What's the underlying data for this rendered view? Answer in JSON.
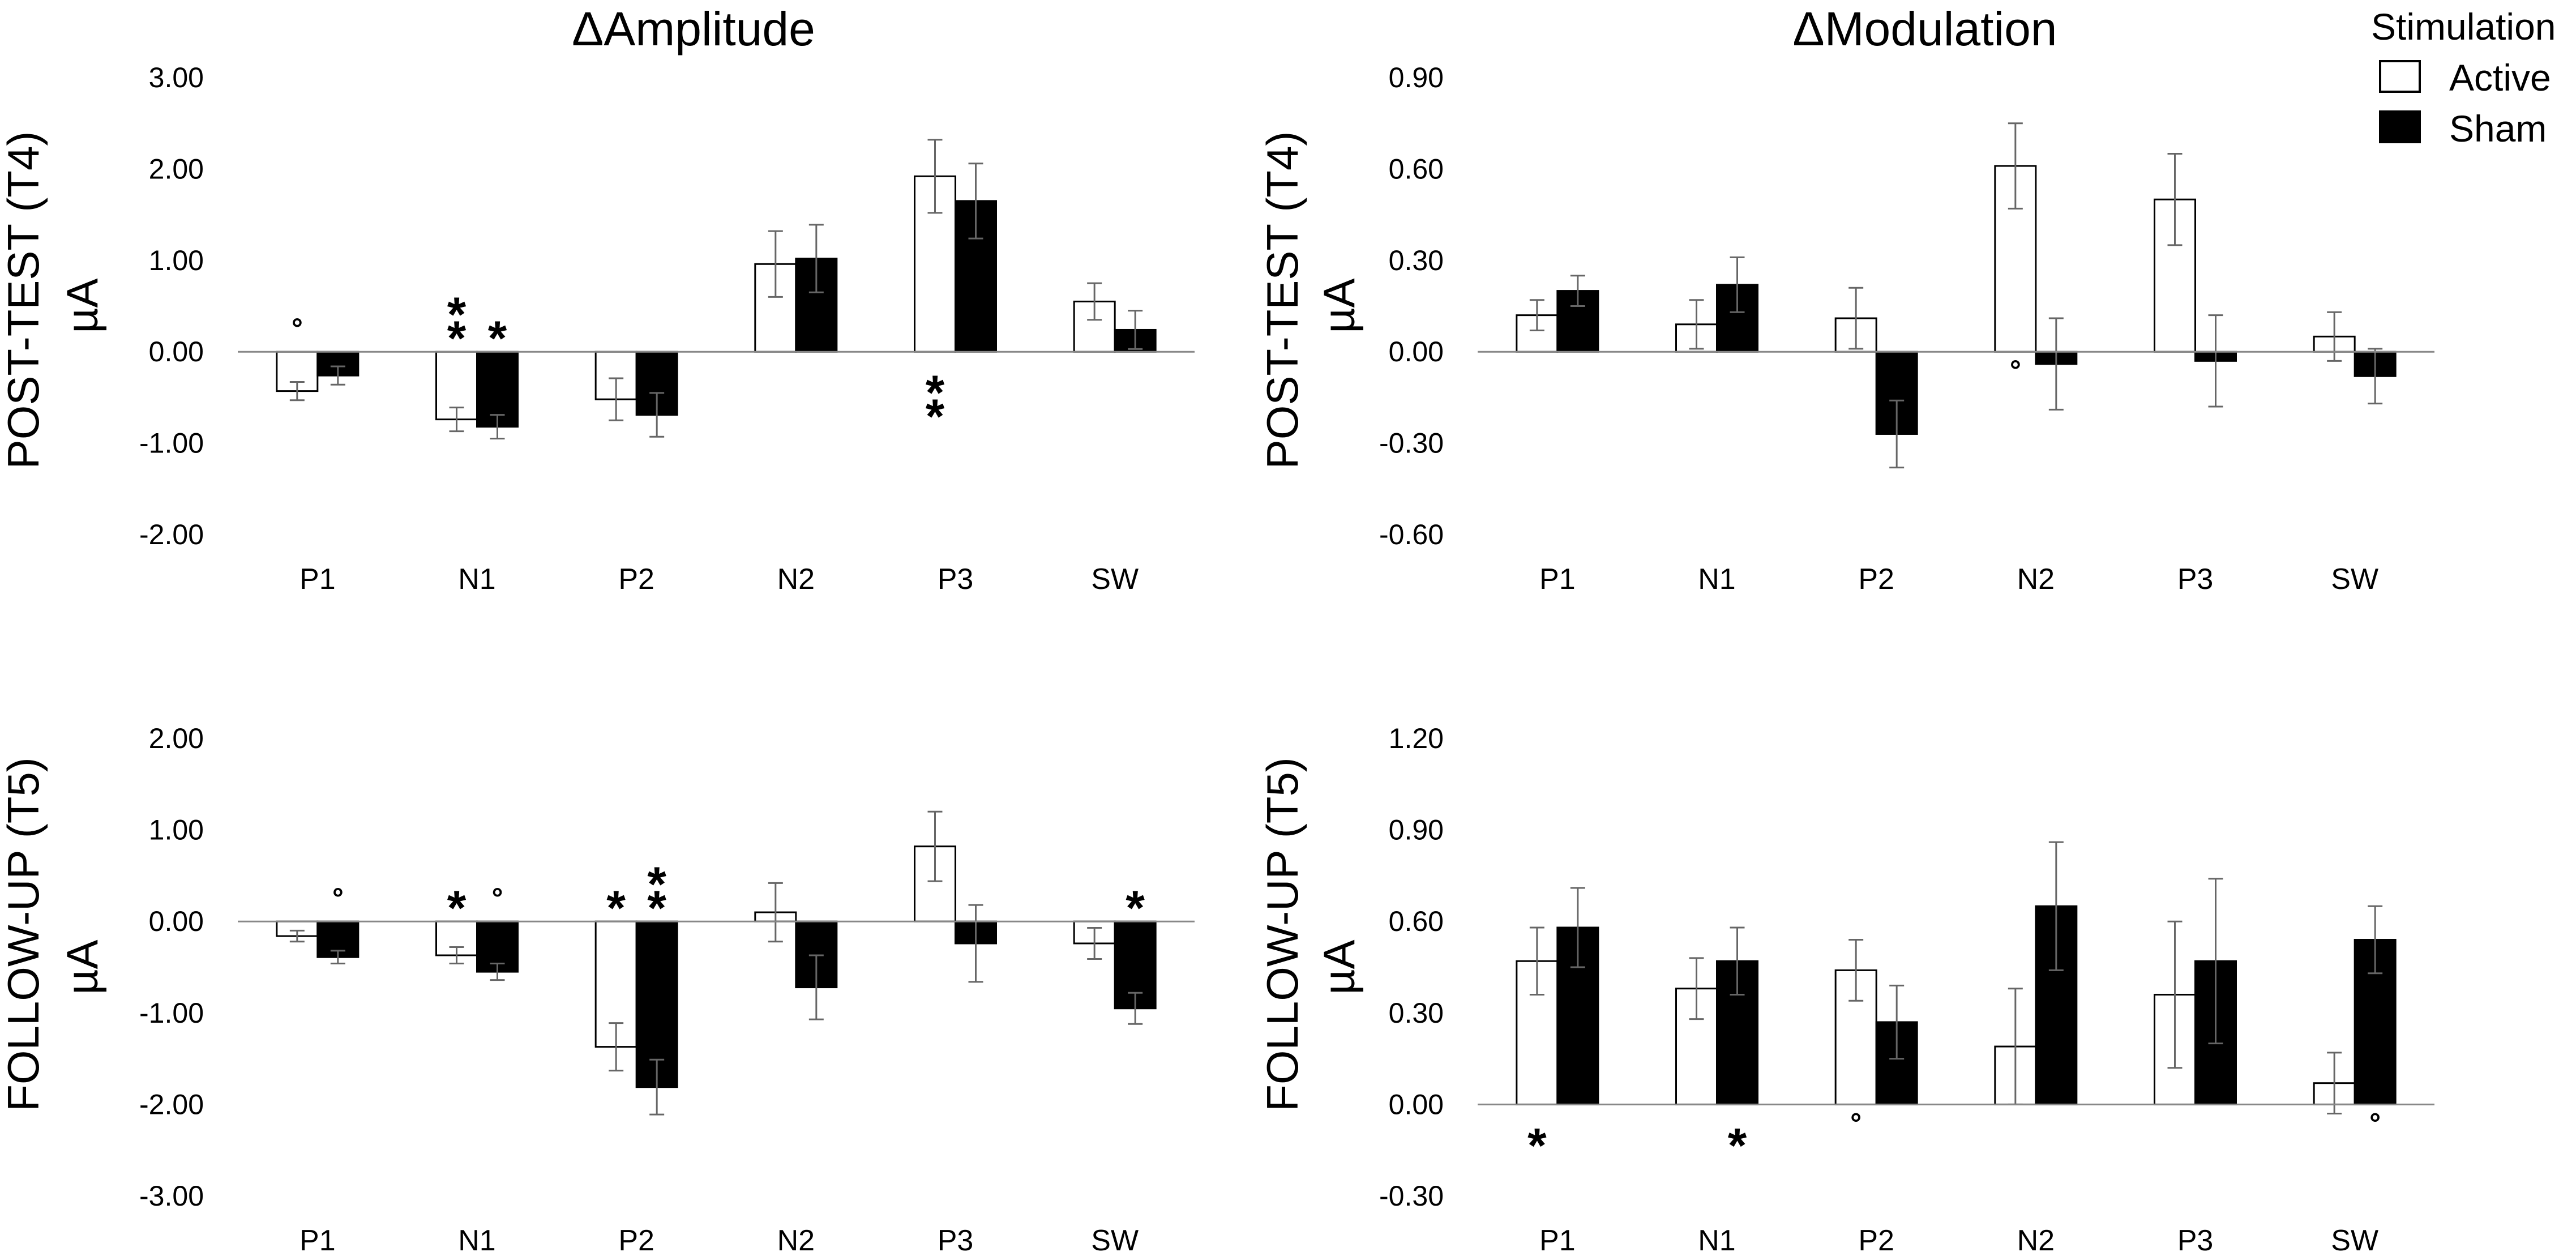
{
  "column_titles": [
    "ΔAmplitude",
    "ΔModulation"
  ],
  "row_labels": [
    "POST-TEST (T4)",
    "FOLLOW-UP (T5)"
  ],
  "legend": {
    "title": "Stimulation",
    "entries": [
      "Active",
      "Sham"
    ]
  },
  "colors": {
    "active_fill": "#ffffff",
    "sham_fill": "#000000",
    "bar_stroke": "#000000",
    "axis": "#888888",
    "error_bar": "#666666"
  },
  "chart_data": [
    {
      "type": "bar",
      "panel": "amplitude-t4",
      "title": "ΔAmplitude",
      "xlabel": "",
      "ylabel": "µA",
      "row_label": "POST-TEST (T4)",
      "categories": [
        "P1",
        "N1",
        "P2",
        "N2",
        "P3",
        "SW"
      ],
      "ylim": [
        -2.0,
        3.0
      ],
      "yticks": [
        "3.00",
        "2.00",
        "1.00",
        "0.00",
        "-1.00",
        "-2.00"
      ],
      "yticks_values": [
        3.0,
        2.0,
        1.0,
        0.0,
        -1.0,
        -2.0
      ],
      "series": [
        {
          "name": "Active",
          "values": [
            -0.43,
            -0.74,
            -0.52,
            0.96,
            1.92,
            0.55
          ],
          "errors": [
            0.1,
            0.13,
            0.23,
            0.36,
            0.4,
            0.2
          ]
        },
        {
          "name": "Sham",
          "values": [
            -0.26,
            -0.82,
            -0.69,
            1.02,
            1.65,
            0.24
          ],
          "errors": [
            0.1,
            0.13,
            0.24,
            0.37,
            0.41,
            0.21
          ]
        }
      ],
      "annotations": [
        {
          "category": "P1",
          "series": "Active",
          "symbol": "°",
          "where": "above"
        },
        {
          "category": "N1",
          "series": "Active",
          "symbol": "**",
          "where": "above"
        },
        {
          "category": "N1",
          "series": "Sham",
          "symbol": "*",
          "where": "above"
        },
        {
          "category": "P3",
          "series": "Active",
          "symbol": "**",
          "where": "below"
        }
      ]
    },
    {
      "type": "bar",
      "panel": "modulation-t4",
      "title": "ΔModulation",
      "xlabel": "",
      "ylabel": "µA",
      "row_label": "POST-TEST (T4)",
      "categories": [
        "P1",
        "N1",
        "P2",
        "N2",
        "P3",
        "SW"
      ],
      "ylim": [
        -0.6,
        0.9
      ],
      "yticks": [
        "0.90",
        "0.60",
        "0.30",
        "0.00",
        "-0.30",
        "-0.60"
      ],
      "yticks_values": [
        0.9,
        0.6,
        0.3,
        0.0,
        -0.3,
        -0.6
      ],
      "series": [
        {
          "name": "Active",
          "values": [
            0.12,
            0.09,
            0.11,
            0.61,
            0.5,
            0.05
          ],
          "errors": [
            0.05,
            0.08,
            0.1,
            0.14,
            0.15,
            0.08
          ]
        },
        {
          "name": "Sham",
          "values": [
            0.2,
            0.22,
            -0.27,
            -0.04,
            -0.03,
            -0.08
          ],
          "errors": [
            0.05,
            0.09,
            0.11,
            0.15,
            0.15,
            0.09
          ]
        }
      ],
      "annotations": [
        {
          "category": "N2",
          "series": "Active",
          "symbol": "°",
          "where": "below"
        }
      ]
    },
    {
      "type": "bar",
      "panel": "amplitude-t5",
      "title": "",
      "xlabel": "",
      "ylabel": "µA",
      "row_label": "FOLLOW-UP (T5)",
      "categories": [
        "P1",
        "N1",
        "P2",
        "N2",
        "P3",
        "SW"
      ],
      "ylim": [
        -3.0,
        2.0
      ],
      "yticks": [
        "2.00",
        "1.00",
        "0.00",
        "-1.00",
        "-2.00",
        "-3.00"
      ],
      "yticks_values": [
        2.0,
        1.0,
        0.0,
        -1.0,
        -2.0,
        -3.0
      ],
      "series": [
        {
          "name": "Active",
          "values": [
            -0.16,
            -0.37,
            -1.37,
            0.1,
            0.82,
            -0.24
          ],
          "errors": [
            0.06,
            0.09,
            0.26,
            0.32,
            0.38,
            0.17
          ]
        },
        {
          "name": "Sham",
          "values": [
            -0.39,
            -0.55,
            -1.81,
            -0.72,
            -0.24,
            -0.95
          ],
          "errors": [
            0.07,
            0.09,
            0.3,
            0.35,
            0.42,
            0.17
          ]
        }
      ],
      "annotations": [
        {
          "category": "P1",
          "series": "Sham",
          "symbol": "°",
          "where": "above"
        },
        {
          "category": "N1",
          "series": "Active",
          "symbol": "*",
          "where": "above"
        },
        {
          "category": "N1",
          "series": "Sham",
          "symbol": "°",
          "where": "above"
        },
        {
          "category": "P2",
          "series": "Active",
          "symbol": "*",
          "where": "above"
        },
        {
          "category": "P2",
          "series": "Sham",
          "symbol": "**",
          "where": "above"
        },
        {
          "category": "SW",
          "series": "Sham",
          "symbol": "*",
          "where": "above"
        }
      ]
    },
    {
      "type": "bar",
      "panel": "modulation-t5",
      "title": "",
      "xlabel": "",
      "ylabel": "µA",
      "row_label": "FOLLOW-UP (T5)",
      "categories": [
        "P1",
        "N1",
        "P2",
        "N2",
        "P3",
        "SW"
      ],
      "ylim": [
        -0.3,
        1.2
      ],
      "yticks": [
        "1.20",
        "0.90",
        "0.60",
        "0.30",
        "0.00",
        "-0.30"
      ],
      "yticks_values": [
        1.2,
        0.9,
        0.6,
        0.3,
        0.0,
        -0.3
      ],
      "series": [
        {
          "name": "Active",
          "values": [
            0.47,
            0.38,
            0.44,
            0.19,
            0.36,
            0.07
          ],
          "errors": [
            0.11,
            0.1,
            0.1,
            0.19,
            0.24,
            0.1
          ]
        },
        {
          "name": "Sham",
          "values": [
            0.58,
            0.47,
            0.27,
            0.65,
            0.47,
            0.54
          ],
          "errors": [
            0.13,
            0.11,
            0.12,
            0.21,
            0.27,
            0.11
          ]
        }
      ],
      "annotations": [
        {
          "category": "P1",
          "series": "Active",
          "symbol": "*",
          "where": "below"
        },
        {
          "category": "N1",
          "series": "Sham",
          "symbol": "*",
          "where": "below"
        },
        {
          "category": "P2",
          "series": "Active",
          "symbol": "°",
          "where": "below"
        },
        {
          "category": "SW",
          "series": "Sham",
          "symbol": "°",
          "where": "below"
        }
      ]
    }
  ]
}
